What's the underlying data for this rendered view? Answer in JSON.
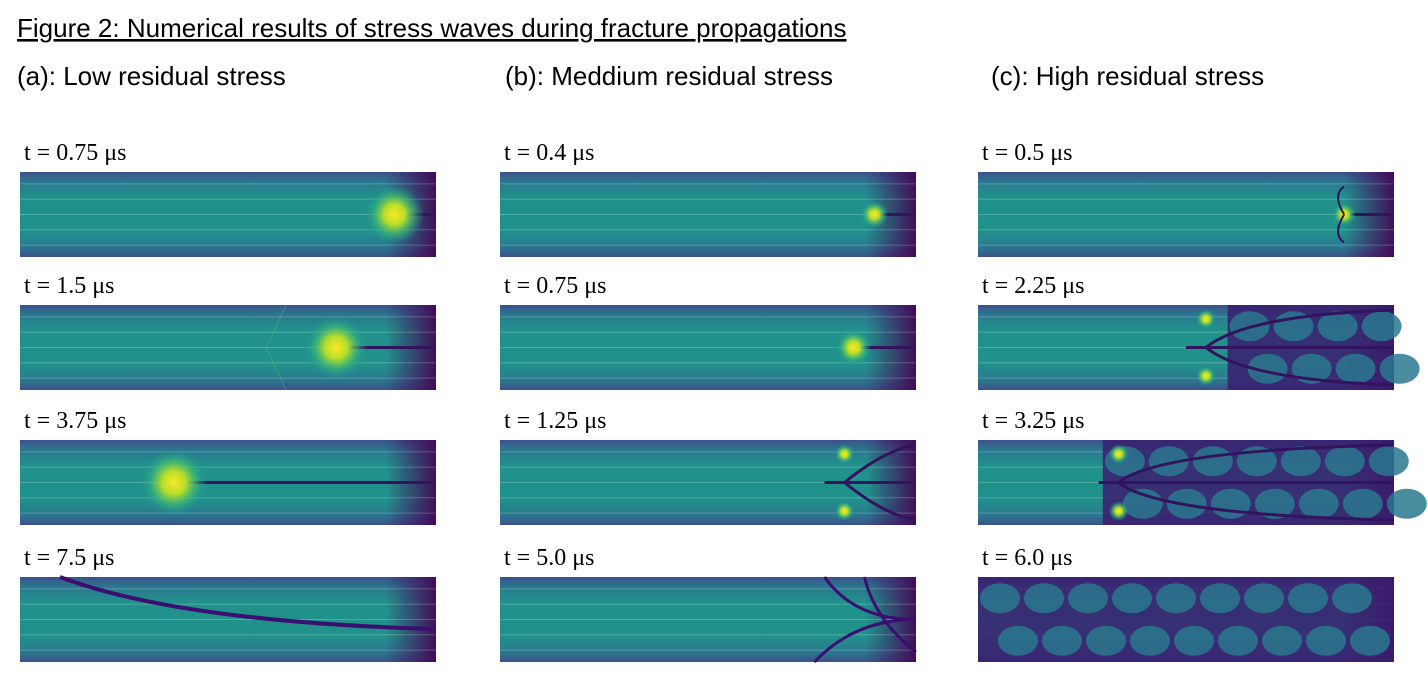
{
  "figure": {
    "title": "Figure 2: Numerical results of stress waves during fracture propagations",
    "columns": [
      {
        "heading": "(a): Low residual stress",
        "panels": [
          {
            "label": "t = 0.75 μs"
          },
          {
            "label": "t = 1.5 μs"
          },
          {
            "label": "t = 3.75 μs"
          },
          {
            "label": "t = 7.5 μs"
          }
        ]
      },
      {
        "heading": "(b): Meddium residual stress",
        "panels": [
          {
            "label": "t = 0.4 μs"
          },
          {
            "label": "t = 0.75 μs"
          },
          {
            "label": "t = 1.25 μs"
          },
          {
            "label": "t = 5.0 μs"
          }
        ]
      },
      {
        "heading": "(c): High residual stress",
        "panels": [
          {
            "label": "t = 0.5 μs"
          },
          {
            "label": "t = 2.25 μs"
          },
          {
            "label": "t = 3.25 μs"
          },
          {
            "label": "t = 6.0 μs"
          }
        ]
      }
    ]
  }
}
